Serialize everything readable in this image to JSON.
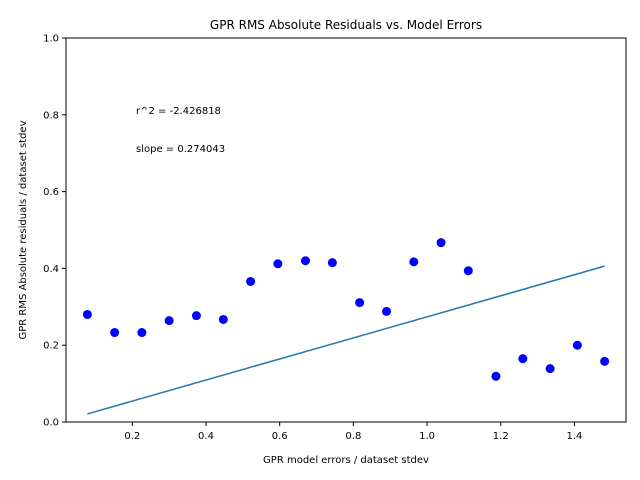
{
  "chart_data": {
    "type": "scatter",
    "title": "GPR RMS Absolute Residuals vs. Model Errors",
    "xlabel": "GPR model errors / dataset stdev",
    "ylabel": "GPR RMS Absolute residuals / dataset stdev",
    "xlim": [
      0.02,
      1.54
    ],
    "ylim": [
      0.0,
      1.0
    ],
    "xticks": [
      0.2,
      0.4,
      0.6,
      0.8,
      1.0,
      1.2,
      1.4
    ],
    "xtick_labels": [
      "0.2",
      "0.4",
      "0.6",
      "0.8",
      "1.0",
      "1.2",
      "1.4"
    ],
    "yticks": [
      0.0,
      0.2,
      0.4,
      0.6,
      0.8,
      1.0
    ],
    "ytick_labels": [
      "0.0",
      "0.2",
      "0.4",
      "0.6",
      "0.8",
      "1.0"
    ],
    "grid": false,
    "colors": {
      "points": "#0000ff",
      "fit_line": "#1f77b4"
    },
    "points": {
      "x": [
        0.078,
        0.152,
        0.226,
        0.3,
        0.374,
        0.447,
        0.521,
        0.595,
        0.67,
        0.743,
        0.817,
        0.89,
        0.964,
        1.038,
        1.112,
        1.187,
        1.26,
        1.334,
        1.408,
        1.482
      ],
      "y": [
        0.28,
        0.233,
        0.233,
        0.264,
        0.277,
        0.267,
        0.366,
        0.412,
        0.42,
        0.415,
        0.311,
        0.288,
        0.417,
        0.467,
        0.394,
        0.119,
        0.165,
        0.139,
        0.2,
        0.158
      ]
    },
    "fit_line": {
      "x": [
        0.078,
        1.482
      ],
      "y": [
        0.021,
        0.406
      ]
    },
    "annotations": [
      "r^2 = -2.426818",
      "slope = 0.274043"
    ]
  }
}
